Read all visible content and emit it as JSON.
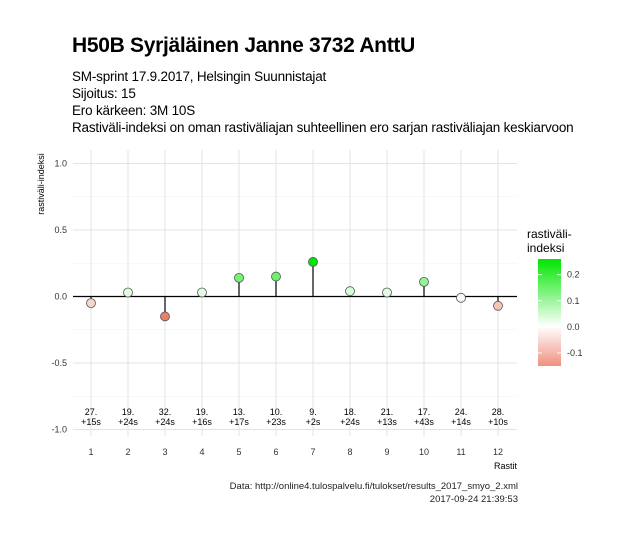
{
  "title": "H50B Syrjäläinen Janne 3732 AnttU",
  "subtitle": [
    "SM-sprint 17.9.2017, Helsingin Suunnistajat",
    "Sijoitus: 15",
    "Ero kärkeen: 3M 10S",
    "Rastiväli-indeksi on oman rastiväliajan suhteellinen ero sarjan rastiväliajan keskiarvoon"
  ],
  "caption": {
    "source": "Data: http://online4.tulospalvelu.fi/tulokset/results_2017_smyo_2.xml",
    "timestamp": "2017-09-24 21:39:53"
  },
  "colors": {
    "positive": "#00e600",
    "neutral": "#ffffff",
    "negative": "#e8806a",
    "panel_grid": "#e6e6e6",
    "stem": "#000000"
  },
  "chart_data": {
    "type": "lollipop",
    "xlabel": "Rastit",
    "ylabel": "rastiväli-indeksi",
    "ylim": [
      -1.0,
      1.0
    ],
    "y_ticks": [
      -1.0,
      -0.5,
      0.0,
      0.5,
      1.0
    ],
    "y_tick_labels": [
      "-1.0",
      "-0.5",
      "0.0",
      "0.5",
      "1.0"
    ],
    "x": [
      1,
      2,
      3,
      4,
      5,
      6,
      7,
      8,
      9,
      10,
      11,
      12
    ],
    "values": [
      -0.05,
      0.03,
      -0.15,
      0.03,
      0.14,
      0.15,
      0.26,
      0.04,
      0.03,
      0.11,
      -0.01,
      -0.07
    ],
    "annotations": [
      [
        "27.",
        "+15s"
      ],
      [
        "19.",
        "+24s"
      ],
      [
        "32.",
        "+24s"
      ],
      [
        "19.",
        "+16s"
      ],
      [
        "13.",
        "+17s"
      ],
      [
        "10.",
        "+23s"
      ],
      [
        "9.",
        "+2s"
      ],
      [
        "18.",
        "+24s"
      ],
      [
        "21.",
        "+13s"
      ],
      [
        "17.",
        "+43s"
      ],
      [
        "24.",
        "+14s"
      ],
      [
        "28.",
        "+10s"
      ]
    ],
    "grid": true,
    "legend": {
      "title": [
        "rastiväli-",
        "indeksi"
      ],
      "placement": "right",
      "ticks": [
        0.2,
        0.1,
        0.0,
        -0.1
      ],
      "tick_labels": [
        "0.2",
        "0.1",
        "0.0",
        "-0.1"
      ],
      "range": [
        -0.15,
        0.26
      ]
    }
  }
}
